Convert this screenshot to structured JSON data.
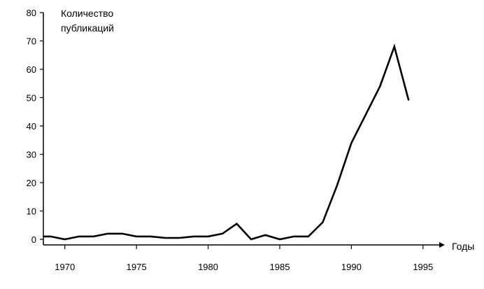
{
  "chart_data": {
    "type": "line",
    "ylabel_line1": "Количество",
    "ylabel_line2": "публикаций",
    "xlabel": "Годы",
    "xlim": [
      1968.5,
      1997.5
    ],
    "ylim": [
      0,
      80
    ],
    "x_ticks": [
      1970,
      1975,
      1980,
      1985,
      1990,
      1995
    ],
    "x_tick_labels": [
      "1970",
      "1975",
      "1980",
      "1985",
      "1990",
      "1995"
    ],
    "y_ticks": [
      0,
      10,
      20,
      30,
      40,
      50,
      60,
      70,
      80
    ],
    "y_tick_labels": [
      "0",
      "10",
      "20",
      "30",
      "40",
      "50",
      "60",
      "70",
      "80"
    ],
    "grid": false,
    "series": [
      {
        "x": [
          1968.5,
          1969,
          1970,
          1971,
          1972,
          1973,
          1974,
          1975,
          1976,
          1977,
          1978,
          1979,
          1980,
          1981,
          1982,
          1983,
          1984,
          1985,
          1986,
          1987,
          1988,
          1989,
          1990,
          1991,
          1992,
          1993,
          1994
        ],
        "values": [
          1,
          1,
          0,
          1,
          1,
          2,
          2,
          1,
          1,
          0.5,
          0.5,
          1,
          1,
          2,
          5.5,
          0,
          1.5,
          0,
          1,
          1,
          6,
          19,
          34,
          44,
          54,
          68,
          49
        ]
      }
    ],
    "colors": {
      "line": "#000000",
      "axis": "#000000"
    }
  }
}
